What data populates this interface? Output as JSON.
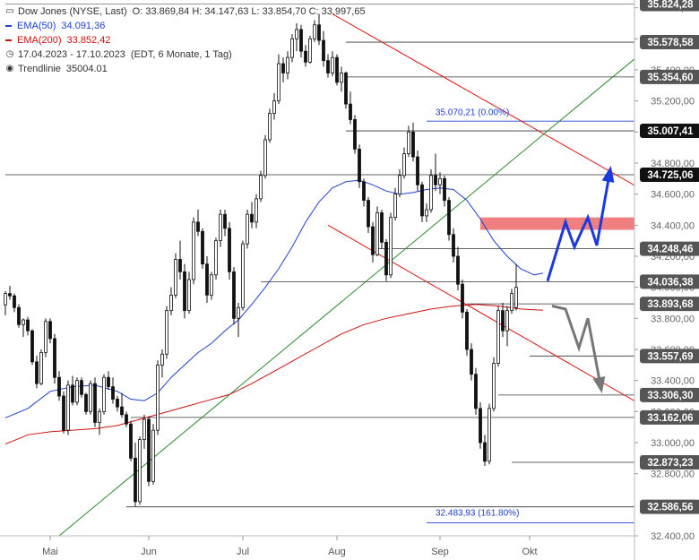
{
  "header": {
    "instrument": "Dow Jones (NYSE, Last)",
    "ohlc": "O: 33.869,84  H: 34.147,63  L: 33.854,70  C: 33.997,65",
    "ema50_label": "EMA(50)",
    "ema50_value": "34.091,36",
    "ema200_label": "EMA(200)",
    "ema200_value": "33.852,42",
    "period": "17.04.2023 - 17.10.2023",
    "period_note": "(EDT, 6 Monate, 1 Tag)",
    "trendline_label": "Trendlinie",
    "trendline_value": "35004.01"
  },
  "colors": {
    "candle": "#111111",
    "ema50": "#2040d0",
    "ema200": "#d01010",
    "resistance_line": "#e01010",
    "support_trend": "#2a8a2a",
    "level_line": "#333333",
    "resistance_zone": "#f08080",
    "bull_arrow": "#1a3adf",
    "bear_arrow": "#777777",
    "fib_text": "#2040d0",
    "label_bg": "#555555",
    "label_bg_dark": "#111111",
    "label_text": "#ffffff"
  },
  "chart_data": {
    "type": "candlestick",
    "y_axis": {
      "min": 32400,
      "max": 35850,
      "ticks": [
        32400,
        32800,
        33000,
        33200,
        33400,
        33600,
        33800,
        34000,
        34200,
        34400,
        34600,
        34800,
        35000,
        35200,
        35400,
        35600,
        35800
      ],
      "tick_labels": [
        "32.400,00",
        "32.800,00",
        "33.000,00",
        "33.200,00",
        "33.400,00",
        "33.600,00",
        "33.800,00",
        "34.000,00",
        "34.200,00",
        "34.400,00",
        "34.600,00",
        "34.800,00",
        "35.000,00",
        "35.200,00",
        "35.400,00",
        "35.600,00",
        "35.800,00"
      ]
    },
    "x_axis": {
      "months": [
        {
          "label": "Mai",
          "index": 10
        },
        {
          "label": "Jun",
          "index": 32
        },
        {
          "label": "Jul",
          "index": 53
        },
        {
          "label": "Aug",
          "index": 74
        },
        {
          "label": "Sep",
          "index": 97
        },
        {
          "label": "Okt",
          "index": 117
        }
      ],
      "bars": 130
    },
    "candles": [
      [
        33887,
        33975,
        33820,
        33960
      ],
      [
        33960,
        34010,
        33920,
        33945
      ],
      [
        33945,
        33960,
        33840,
        33870
      ],
      [
        33870,
        33890,
        33740,
        33760
      ],
      [
        33760,
        33800,
        33680,
        33790
      ],
      [
        33790,
        33810,
        33690,
        33720
      ],
      [
        33720,
        33730,
        33500,
        33520
      ],
      [
        33520,
        33560,
        33350,
        33380
      ],
      [
        33380,
        33600,
        33370,
        33580
      ],
      [
        33580,
        33800,
        33550,
        33780
      ],
      [
        33780,
        33800,
        33640,
        33670
      ],
      [
        33670,
        33700,
        33380,
        33420
      ],
      [
        33420,
        33460,
        33270,
        33300
      ],
      [
        33300,
        33330,
        33060,
        33080
      ],
      [
        33080,
        33400,
        33050,
        33370
      ],
      [
        33370,
        33430,
        33240,
        33260
      ],
      [
        33260,
        33420,
        33240,
        33400
      ],
      [
        33400,
        33420,
        33290,
        33310
      ],
      [
        33310,
        33320,
        33180,
        33200
      ],
      [
        33200,
        33400,
        33180,
        33380
      ],
      [
        33380,
        33420,
        33100,
        33130
      ],
      [
        33130,
        33220,
        33050,
        33200
      ],
      [
        33200,
        33440,
        33180,
        33420
      ],
      [
        33420,
        33460,
        33340,
        33360
      ],
      [
        33360,
        33420,
        33250,
        33280
      ],
      [
        33280,
        33300,
        33200,
        33230
      ],
      [
        33230,
        33320,
        33160,
        33180
      ],
      [
        33180,
        33200,
        33100,
        33120
      ],
      [
        33120,
        33140,
        32880,
        32900
      ],
      [
        32900,
        33000,
        32590,
        32620
      ],
      [
        32620,
        33040,
        32600,
        33020
      ],
      [
        33020,
        33180,
        32960,
        33150
      ],
      [
        33150,
        33170,
        32720,
        32750
      ],
      [
        32750,
        33120,
        32730,
        33080
      ],
      [
        33080,
        33530,
        33050,
        33500
      ],
      [
        33500,
        33600,
        33420,
        33570
      ],
      [
        33570,
        33880,
        33540,
        33850
      ],
      [
        33850,
        34000,
        33820,
        33950
      ],
      [
        33950,
        34220,
        33930,
        34180
      ],
      [
        34180,
        34300,
        34050,
        34100
      ],
      [
        34100,
        34150,
        33800,
        33850
      ],
      [
        33850,
        34100,
        33830,
        34050
      ],
      [
        34050,
        34450,
        34020,
        34420
      ],
      [
        34420,
        34500,
        34330,
        34360
      ],
      [
        34360,
        34380,
        34120,
        34150
      ],
      [
        34150,
        34200,
        33900,
        33950
      ],
      [
        33950,
        34100,
        33920,
        34080
      ],
      [
        34080,
        34320,
        34050,
        34300
      ],
      [
        34300,
        34500,
        34260,
        34470
      ],
      [
        34470,
        34500,
        34330,
        34380
      ],
      [
        34380,
        34420,
        34050,
        34100
      ],
      [
        34100,
        34130,
        33760,
        33800
      ],
      [
        33800,
        33900,
        33680,
        33870
      ],
      [
        33870,
        34300,
        33850,
        34280
      ],
      [
        34280,
        34500,
        34250,
        34470
      ],
      [
        34470,
        34550,
        34380,
        34420
      ],
      [
        34420,
        34600,
        34380,
        34570
      ],
      [
        34570,
        34750,
        34550,
        34720
      ],
      [
        34720,
        34980,
        34700,
        34950
      ],
      [
        34950,
        35150,
        34930,
        35120
      ],
      [
        35120,
        35250,
        35080,
        35200
      ],
      [
        35200,
        35500,
        35180,
        35440
      ],
      [
        35440,
        35480,
        35320,
        35380
      ],
      [
        35380,
        35520,
        35340,
        35480
      ],
      [
        35480,
        35630,
        35450,
        35600
      ],
      [
        35600,
        35700,
        35520,
        35660
      ],
      [
        35660,
        35690,
        35480,
        35520
      ],
      [
        35520,
        35560,
        35420,
        35450
      ],
      [
        35450,
        35620,
        35440,
        35600
      ],
      [
        35600,
        35720,
        35580,
        35690
      ],
      [
        35690,
        35760,
        35560,
        35590
      ],
      [
        35590,
        35650,
        35420,
        35460
      ],
      [
        35460,
        35500,
        35350,
        35380
      ],
      [
        35380,
        35520,
        35360,
        35480
      ],
      [
        35480,
        35500,
        35300,
        35320
      ],
      [
        35320,
        35420,
        35260,
        35380
      ],
      [
        35380,
        35390,
        35150,
        35180
      ],
      [
        35180,
        35260,
        35050,
        35080
      ],
      [
        35080,
        35110,
        34860,
        34890
      ],
      [
        34890,
        34920,
        34640,
        34680
      ],
      [
        34680,
        34700,
        34520,
        34560
      ],
      [
        34560,
        34580,
        34350,
        34390
      ],
      [
        34390,
        34420,
        34160,
        34210
      ],
      [
        34210,
        34520,
        34200,
        34480
      ],
      [
        34480,
        34500,
        34250,
        34290
      ],
      [
        34290,
        34310,
        34040,
        34080
      ],
      [
        34080,
        34480,
        34060,
        34450
      ],
      [
        34450,
        34640,
        34430,
        34600
      ],
      [
        34600,
        34760,
        34580,
        34720
      ],
      [
        34720,
        34900,
        34700,
        34860
      ],
      [
        34860,
        35040,
        34840,
        35000
      ],
      [
        35000,
        35060,
        34810,
        34840
      ],
      [
        34840,
        34880,
        34620,
        34660
      ],
      [
        34660,
        34680,
        34420,
        34460
      ],
      [
        34460,
        34540,
        34420,
        34500
      ],
      [
        34500,
        34760,
        34480,
        34720
      ],
      [
        34720,
        34860,
        34620,
        34660
      ],
      [
        34660,
        34740,
        34600,
        34700
      ],
      [
        34700,
        34720,
        34520,
        34560
      ],
      [
        34560,
        34580,
        34300,
        34340
      ],
      [
        34340,
        34380,
        34160,
        34200
      ],
      [
        34200,
        34260,
        33980,
        34020
      ],
      [
        34020,
        34050,
        33800,
        33840
      ],
      [
        33840,
        33860,
        33560,
        33600
      ],
      [
        33600,
        33640,
        33400,
        33440
      ],
      [
        33440,
        33480,
        33180,
        33220
      ],
      [
        33220,
        33260,
        32960,
        33000
      ],
      [
        33000,
        33050,
        32850,
        32880
      ],
      [
        32880,
        33250,
        32860,
        33220
      ],
      [
        33220,
        33550,
        33200,
        33510
      ],
      [
        33510,
        33880,
        33490,
        33850
      ],
      [
        33850,
        33900,
        33680,
        33720
      ],
      [
        33720,
        33880,
        33620,
        33850
      ],
      [
        33850,
        33990,
        33830,
        33960
      ],
      [
        33870,
        34150,
        33850,
        34000
      ]
    ],
    "ema50": [
      [
        0,
        33160
      ],
      [
        5,
        33220
      ],
      [
        10,
        33330
      ],
      [
        15,
        33360
      ],
      [
        20,
        33370
      ],
      [
        25,
        33330
      ],
      [
        28,
        33280
      ],
      [
        31,
        33270
      ],
      [
        34,
        33320
      ],
      [
        37,
        33420
      ],
      [
        40,
        33500
      ],
      [
        43,
        33580
      ],
      [
        46,
        33640
      ],
      [
        49,
        33720
      ],
      [
        52,
        33790
      ],
      [
        55,
        33890
      ],
      [
        58,
        34000
      ],
      [
        61,
        34120
      ],
      [
        64,
        34260
      ],
      [
        67,
        34420
      ],
      [
        70,
        34550
      ],
      [
        73,
        34640
      ],
      [
        76,
        34680
      ],
      [
        79,
        34690
      ],
      [
        82,
        34660
      ],
      [
        85,
        34620
      ],
      [
        88,
        34600
      ],
      [
        91,
        34610
      ],
      [
        94,
        34630
      ],
      [
        97,
        34640
      ],
      [
        100,
        34630
      ],
      [
        103,
        34560
      ],
      [
        106,
        34440
      ],
      [
        109,
        34300
      ],
      [
        112,
        34200
      ],
      [
        115,
        34120
      ],
      [
        118,
        34080
      ],
      [
        120,
        34091
      ]
    ],
    "ema200": [
      [
        0,
        32990
      ],
      [
        5,
        33050
      ],
      [
        10,
        33070
      ],
      [
        15,
        33080
      ],
      [
        20,
        33090
      ],
      [
        25,
        33110
      ],
      [
        30,
        33150
      ],
      [
        35,
        33190
      ],
      [
        40,
        33230
      ],
      [
        45,
        33270
      ],
      [
        50,
        33310
      ],
      [
        55,
        33380
      ],
      [
        60,
        33460
      ],
      [
        65,
        33540
      ],
      [
        70,
        33620
      ],
      [
        75,
        33700
      ],
      [
        80,
        33760
      ],
      [
        85,
        33800
      ],
      [
        90,
        33830
      ],
      [
        95,
        33860
      ],
      [
        100,
        33880
      ],
      [
        105,
        33890
      ],
      [
        110,
        33880
      ],
      [
        115,
        33860
      ],
      [
        118,
        33855
      ],
      [
        120,
        33852
      ]
    ],
    "horizontal_levels": [
      {
        "value": 35824.28,
        "label": "35.824,28",
        "from": 0,
        "style": "light"
      },
      {
        "value": 35578.58,
        "label": "35.578,58",
        "from": 76,
        "style": "dark"
      },
      {
        "value": 35354.6,
        "label": "35.354,60",
        "from": 76,
        "style": "dark"
      },
      {
        "value": 35070.21,
        "label": "",
        "from": 94,
        "style": "blue"
      },
      {
        "value": 35007.41,
        "label": "35.007,41",
        "from": 76,
        "style": "dark",
        "highlight": true
      },
      {
        "value": 34725.06,
        "label": "34.725,06",
        "from": 0,
        "style": "dark",
        "highlight": true
      },
      {
        "value": 34248.46,
        "label": "34.248,46",
        "from": 83,
        "style": "dark"
      },
      {
        "value": 34036.38,
        "label": "34.036,38",
        "from": 57,
        "style": "dark"
      },
      {
        "value": 33893.68,
        "label": "33.893,68",
        "from": 103,
        "style": "dark"
      },
      {
        "value": 33557.69,
        "label": "33.557,69",
        "from": 117,
        "style": "dark"
      },
      {
        "value": 33306.3,
        "label": "33.306,30",
        "from": 110,
        "style": "dark"
      },
      {
        "value": 33162.06,
        "label": "33.162,06",
        "from": 28,
        "style": "dark"
      },
      {
        "value": 32873.23,
        "label": "32.873,23",
        "from": 113,
        "style": "dark"
      },
      {
        "value": 32586.56,
        "label": "32.586,56",
        "from": 27,
        "style": "dark"
      },
      {
        "value": 32483.93,
        "label": "",
        "from": 94,
        "style": "blue"
      }
    ],
    "annotations": [
      {
        "text": "35.070,21 (0.00%)",
        "x": 96,
        "value": 35110
      },
      {
        "text": "32.483,93 (161.80%)",
        "x": 96,
        "value": 32530
      }
    ],
    "trendlines": [
      {
        "name": "resistance",
        "from": [
          73,
          35760
        ],
        "to": [
          150,
          34500
        ],
        "color": "resistance_line"
      },
      {
        "name": "lower-channel",
        "from": [
          72,
          34400
        ],
        "to": [
          150,
          33110
        ],
        "color": "resistance_line"
      },
      {
        "name": "green-support",
        "from": [
          12,
          32400
        ],
        "to": [
          150,
          35700
        ],
        "color": "support_trend"
      }
    ],
    "zones": [
      {
        "from_x": 106,
        "to_x": 150,
        "low": 34370,
        "high": 34450
      }
    ],
    "projection_bull": [
      [
        121,
        34040
      ],
      [
        125,
        34420
      ],
      [
        127,
        34260
      ],
      [
        130,
        34450
      ],
      [
        132,
        34270
      ],
      [
        135,
        34760
      ]
    ],
    "projection_bear": [
      [
        122,
        33880
      ],
      [
        125,
        33860
      ],
      [
        128,
        33610
      ],
      [
        130,
        33800
      ],
      [
        133,
        33340
      ]
    ]
  }
}
